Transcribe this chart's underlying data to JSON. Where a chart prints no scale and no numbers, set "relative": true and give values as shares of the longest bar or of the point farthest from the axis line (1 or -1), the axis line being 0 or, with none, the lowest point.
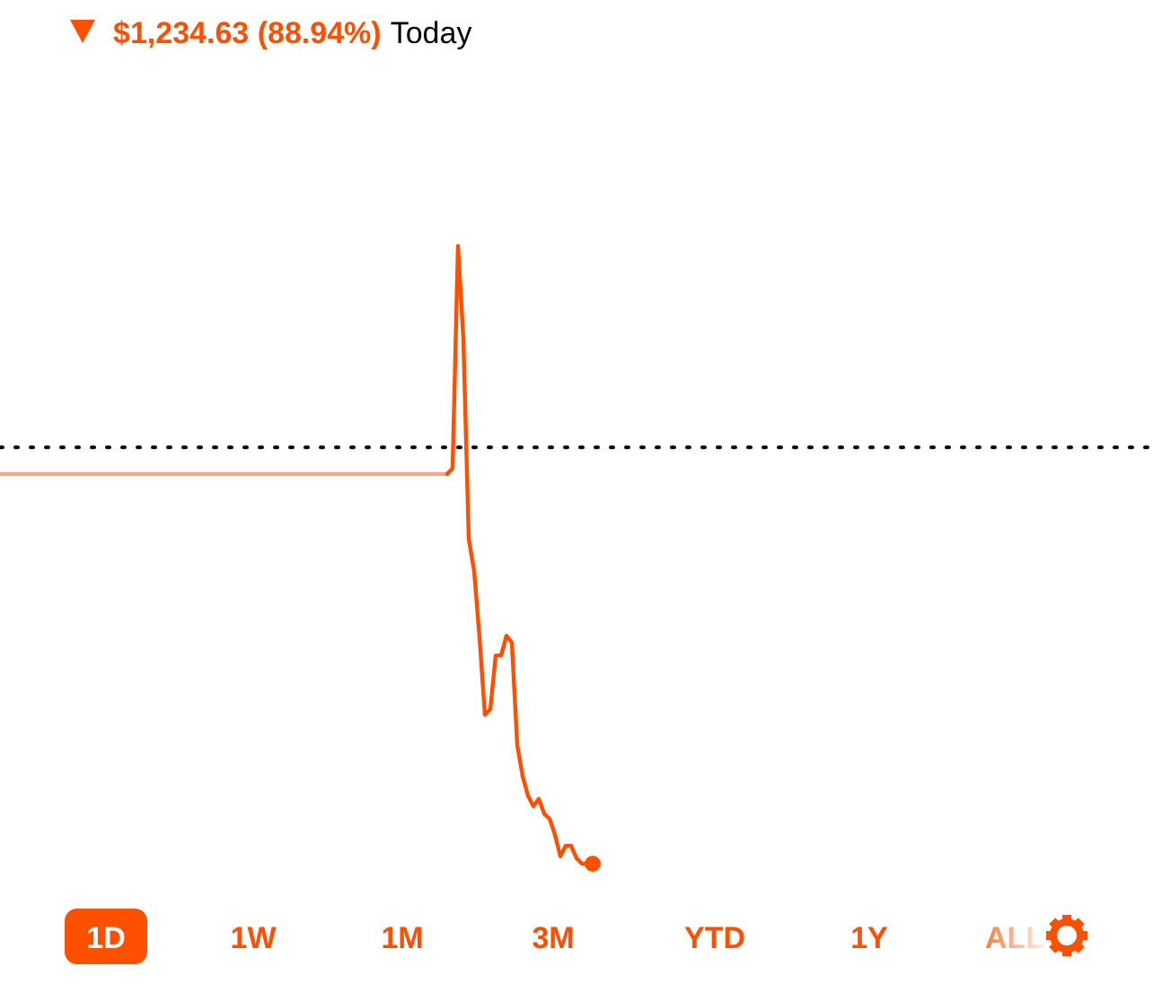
{
  "chart_data": {
    "type": "line",
    "relative": true,
    "title": "$1,234.63 (88.94%)",
    "subtitle": "Today",
    "categories": [
      null,
      null,
      null,
      null,
      null,
      null,
      null,
      null,
      null,
      null,
      null,
      null,
      null,
      null,
      null,
      null,
      null,
      null,
      null,
      null,
      null,
      null,
      null,
      null,
      null,
      null,
      null,
      null,
      null,
      null,
      null,
      null,
      null,
      null,
      null,
      null,
      null,
      null,
      null,
      null,
      null,
      null,
      null,
      null,
      null,
      null,
      null,
      null,
      null,
      null,
      null,
      null,
      null,
      null,
      null,
      null,
      null,
      null,
      null,
      null,
      null,
      null,
      null,
      null,
      null,
      null,
      null,
      null,
      null,
      null,
      null,
      null,
      null,
      null,
      null,
      null,
      null,
      null,
      null,
      null,
      null,
      null,
      null,
      null,
      null,
      null,
      null,
      null,
      null,
      null,
      null,
      null,
      null,
      null,
      null,
      null,
      null,
      null,
      null,
      null,
      null,
      null,
      null,
      null,
      null,
      null,
      null,
      null,
      null,
      null,
      null,
      null,
      null,
      null,
      null,
      null,
      null,
      null,
      null,
      null,
      null,
      null,
      null,
      null,
      null,
      null,
      null,
      null,
      null,
      null,
      null,
      null,
      null,
      null,
      null,
      null,
      null,
      null,
      null,
      null,
      null,
      null,
      null,
      null,
      null,
      null,
      null,
      null,
      null,
      null,
      null,
      null,
      null,
      null,
      null,
      null,
      null,
      null,
      null,
      null,
      null,
      null,
      null,
      null,
      null,
      null,
      null,
      null,
      null,
      null,
      null,
      null,
      null,
      null,
      null,
      null,
      null,
      null,
      null,
      null,
      null,
      null,
      null,
      null,
      null,
      null,
      null,
      null,
      null,
      null,
      null,
      null,
      null,
      null,
      null,
      null,
      null,
      null,
      null,
      null,
      null,
      null,
      null,
      null,
      null,
      null,
      null,
      null,
      null,
      null,
      null,
      null,
      null,
      null
    ],
    "series": [
      {
        "color": "#ffa582",
        "values": [
          0.631,
          0.631,
          0.631,
          0.631,
          0.631,
          0.631,
          0.631,
          0.631,
          0.631,
          0.631,
          0.631,
          0.631,
          0.631,
          0.631,
          0.631,
          0.631,
          0.631,
          0.631,
          0.631,
          0.631,
          0.631,
          0.631,
          0.631,
          0.631,
          0.631,
          0.631,
          0.631,
          0.631,
          0.631,
          0.631,
          0.631,
          0.631,
          0.631,
          0.631,
          0.631,
          0.631,
          0.631,
          0.631,
          0.631,
          0.631,
          0.631,
          0.631,
          0.631,
          0.631,
          0.631,
          0.631,
          0.631,
          0.631,
          0.631,
          0.631,
          0.631,
          0.631,
          0.631,
          0.631,
          0.631,
          0.631,
          0.631,
          0.631,
          0.631,
          0.631,
          0.631,
          0.631,
          0.631,
          0.631,
          0.631,
          0.631,
          0.631,
          0.631,
          0.631,
          0.631,
          0.631,
          0.631,
          0.631,
          0.631,
          0.631,
          0.631,
          0.631,
          0.631,
          0.631,
          0.631,
          0.631,
          0.631,
          0.631,
          0.631,
          null,
          null,
          null,
          null,
          null,
          null,
          null,
          null,
          null,
          null,
          null,
          null,
          null,
          null,
          null,
          null,
          null,
          null,
          null,
          null,
          null,
          null,
          null,
          null,
          null,
          null,
          null,
          null,
          null,
          null,
          null,
          null,
          null,
          null,
          null,
          null,
          null,
          null,
          null,
          null,
          null,
          null,
          null,
          null,
          null,
          null,
          null,
          null,
          null,
          null,
          null,
          null,
          null,
          null,
          null,
          null,
          null,
          null,
          null,
          null,
          null,
          null,
          null,
          null,
          null,
          null,
          null,
          null,
          null,
          null,
          null,
          null,
          null,
          null,
          null,
          null,
          null,
          null,
          null,
          null,
          null,
          null,
          null,
          null,
          null,
          null,
          null,
          null,
          null,
          null,
          null,
          null,
          null,
          null,
          null,
          null,
          null,
          null,
          null,
          null,
          null,
          null,
          null,
          null,
          null,
          null,
          null,
          null,
          null,
          null,
          null,
          null,
          null,
          null,
          null,
          null,
          null,
          null,
          null,
          null,
          null,
          null,
          null,
          null,
          null,
          null,
          null,
          null,
          null,
          null
        ]
      },
      {
        "color": "#ff5000",
        "values": [
          null,
          null,
          null,
          null,
          null,
          null,
          null,
          null,
          null,
          null,
          null,
          null,
          null,
          null,
          null,
          null,
          null,
          null,
          null,
          null,
          null,
          null,
          null,
          null,
          null,
          null,
          null,
          null,
          null,
          null,
          null,
          null,
          null,
          null,
          null,
          null,
          null,
          null,
          null,
          null,
          null,
          null,
          null,
          null,
          null,
          null,
          null,
          null,
          null,
          null,
          null,
          null,
          null,
          null,
          null,
          null,
          null,
          null,
          null,
          null,
          null,
          null,
          null,
          null,
          null,
          null,
          null,
          null,
          null,
          null,
          null,
          null,
          null,
          null,
          null,
          null,
          null,
          null,
          null,
          null,
          null,
          null,
          null,
          0.631,
          0.64,
          1,
          0.85,
          0.526,
          0.474,
          0.366,
          0.241,
          0.25,
          0.337,
          0.337,
          0.369,
          0.358,
          0.192,
          0.142,
          0.11,
          0.093,
          0.105,
          0.081,
          0.073,
          0.047,
          0.012,
          0.029,
          0.029,
          0.009,
          0,
          0,
          0,
          null,
          null,
          null,
          null,
          null,
          null,
          null,
          null,
          null,
          null,
          null,
          null,
          null,
          null,
          null,
          null,
          null,
          null,
          null,
          null,
          null,
          null,
          null,
          null,
          null,
          null,
          null,
          null,
          null,
          null,
          null,
          null,
          null,
          null,
          null,
          null,
          null,
          null,
          null,
          null,
          null,
          null,
          null,
          null,
          null,
          null,
          null,
          null,
          null,
          null,
          null,
          null,
          null,
          null,
          null,
          null,
          null,
          null,
          null,
          null,
          null,
          null,
          null,
          null,
          null,
          null,
          null,
          null,
          null,
          null,
          null,
          null,
          null,
          null,
          null,
          null,
          null,
          null,
          null,
          null,
          null,
          null,
          null,
          null,
          null,
          null,
          null,
          null,
          null,
          null,
          null,
          null,
          null,
          null,
          null,
          null,
          null,
          null,
          null,
          null,
          null,
          null,
          null
        ]
      }
    ],
    "ref_lines": [
      {
        "axis": "y",
        "value": 0.674,
        "color": "#000000",
        "line_style": "dotted"
      }
    ],
    "annotations": [
      "1D",
      "1W",
      "1M",
      "3M",
      "YTD",
      "1Y",
      "ALL"
    ]
  }
}
